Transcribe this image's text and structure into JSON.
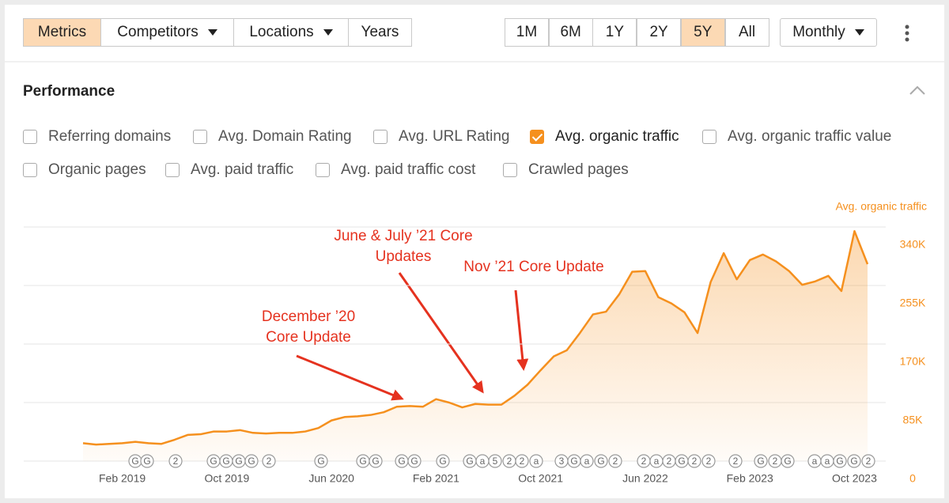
{
  "toolbar": {
    "tabs": [
      {
        "label": "Metrics",
        "dropdown": false
      },
      {
        "label": "Competitors",
        "dropdown": true
      },
      {
        "label": "Locations",
        "dropdown": true
      },
      {
        "label": "Years",
        "dropdown": false
      }
    ],
    "active_tab": 0,
    "ranges": [
      "1M",
      "6M",
      "1Y",
      "2Y",
      "5Y",
      "All"
    ],
    "active_range": 4,
    "interval": "Monthly"
  },
  "section": {
    "title": "Performance",
    "checkboxes": [
      [
        {
          "label": "Referring domains",
          "checked": false
        },
        {
          "label": "Avg. Domain Rating",
          "checked": false
        },
        {
          "label": "Avg. URL Rating",
          "checked": false
        },
        {
          "label": "Avg. organic traffic",
          "checked": true
        },
        {
          "label": "Avg. organic traffic value",
          "checked": false
        }
      ],
      [
        {
          "label": "Organic pages",
          "checked": false
        },
        {
          "label": "Avg. paid traffic",
          "checked": false
        },
        {
          "label": "Avg. paid traffic cost",
          "checked": false
        },
        {
          "label": "Crawled pages",
          "checked": false
        }
      ]
    ]
  },
  "chart_data": {
    "type": "area",
    "y_label": "Avg. organic traffic",
    "y_axis_side": "right",
    "color": "#f5901e",
    "grid": true,
    "categories": [
      null,
      null,
      null,
      "Feb 2019",
      null,
      null,
      null,
      null,
      null,
      null,
      null,
      "Oct 2019",
      null,
      null,
      null,
      null,
      null,
      null,
      null,
      "Jun 2020",
      null,
      null,
      null,
      null,
      null,
      null,
      null,
      "Feb 2021",
      null,
      null,
      null,
      null,
      null,
      null,
      null,
      "Oct 2021",
      null,
      null,
      null,
      null,
      null,
      null,
      null,
      "Jun 2022",
      null,
      null,
      null,
      null,
      null,
      null,
      null,
      "Feb 2023",
      null,
      null,
      null,
      null,
      null,
      null,
      null,
      "Oct 2023",
      null
    ],
    "values": [
      26000,
      24000,
      25000,
      26000,
      28000,
      26000,
      25000,
      31000,
      38000,
      39000,
      43000,
      43000,
      45000,
      41000,
      40000,
      41000,
      41000,
      43000,
      48000,
      59000,
      64000,
      65000,
      67000,
      71000,
      79000,
      80000,
      79000,
      90000,
      85000,
      78000,
      83000,
      82000,
      82000,
      95000,
      111000,
      132000,
      152000,
      161000,
      186000,
      213000,
      217000,
      242000,
      275000,
      276000,
      238000,
      229000,
      216000,
      186000,
      260000,
      302000,
      264000,
      292000,
      300000,
      290000,
      276000,
      256000,
      261000,
      269000,
      247000,
      334000,
      286000
    ],
    "ylim": [
      0,
      340000
    ],
    "yticks": [
      {
        "value": 0,
        "label": "0"
      },
      {
        "value": 85000,
        "label": "85K"
      },
      {
        "value": 170000,
        "label": "170K"
      },
      {
        "value": 255000,
        "label": "255K"
      },
      {
        "value": 340000,
        "label": "340K"
      }
    ],
    "annotations": [
      {
        "lines": [
          "June & July ’21 Core",
          "Updates"
        ]
      },
      {
        "lines": [
          "Nov ’21 Core Update"
        ]
      },
      {
        "lines": [
          "December ’20",
          "Core Update"
        ]
      }
    ],
    "markers": [
      "G",
      "G",
      "2",
      "G",
      "G",
      "G",
      "G",
      "2",
      "G",
      "G",
      "G",
      "G",
      "G",
      "G",
      "G",
      "a",
      "5",
      "2",
      "2",
      "a",
      "3",
      "G",
      "a",
      "G",
      "2",
      "2",
      "a",
      "2",
      "G",
      "2",
      "2",
      "2",
      "G",
      "2",
      "G",
      "a",
      "a",
      "G",
      "G",
      "2"
    ]
  }
}
